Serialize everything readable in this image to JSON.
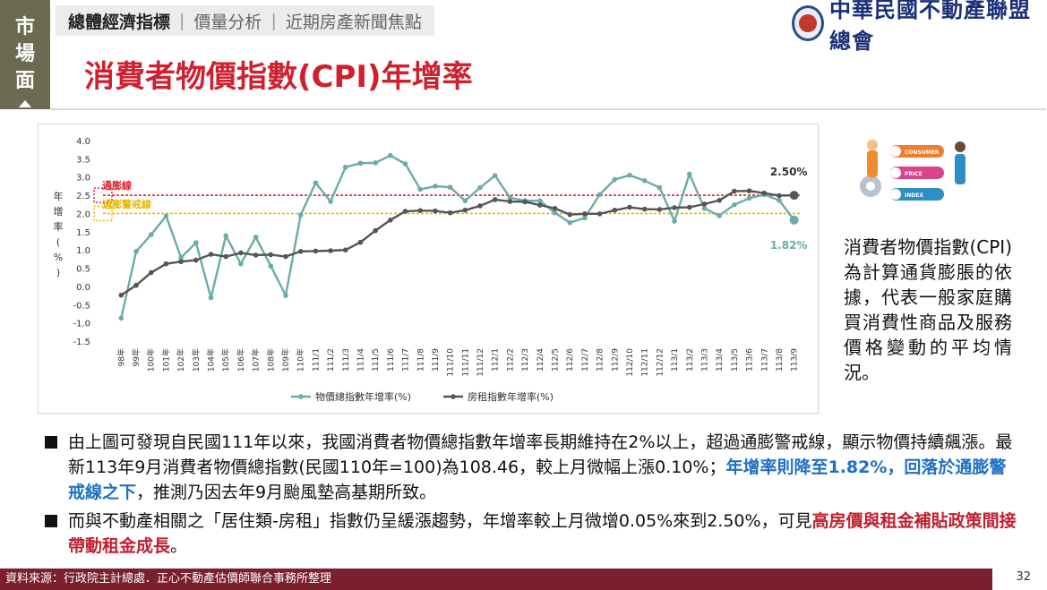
{
  "side_tab": {
    "chars": [
      "市",
      "場",
      "面"
    ]
  },
  "nav": {
    "tabs": [
      "總體經濟指標",
      "價量分析",
      "近期房產新聞焦點"
    ]
  },
  "logo": {
    "text": "中華民國不動產聯盟總會"
  },
  "page": {
    "title": "消費者物價指數(CPI)年增率",
    "number": "32"
  },
  "chart_data": {
    "type": "line",
    "x": [
      "98年",
      "99年",
      "100年",
      "101年",
      "102年",
      "103年",
      "104年",
      "105年",
      "106年",
      "107年",
      "108年",
      "109年",
      "110年",
      "111/1",
      "111/2",
      "111/3",
      "111/4",
      "111/5",
      "111/6",
      "111/7",
      "111/8",
      "111/9",
      "111/10",
      "111/11",
      "111/12",
      "112/1",
      "112/2",
      "112/3",
      "112/4",
      "112/5",
      "112/6",
      "112/7",
      "112/8",
      "112/9",
      "112/10",
      "112/11",
      "112/12",
      "113/1",
      "113/2",
      "113/3",
      "113/4",
      "113/5",
      "113/6",
      "113/7",
      "113/8",
      "113/9"
    ],
    "series": [
      {
        "name": "物價總指數年增率(%)",
        "color": "#6aaca8",
        "values": [
          -0.87,
          0.96,
          1.42,
          1.93,
          0.79,
          1.2,
          -0.31,
          1.39,
          0.62,
          1.35,
          0.56,
          -0.25,
          1.96,
          2.84,
          2.33,
          3.27,
          3.38,
          3.39,
          3.59,
          3.36,
          2.66,
          2.75,
          2.72,
          2.35,
          2.71,
          3.04,
          2.43,
          2.35,
          2.35,
          2.02,
          1.75,
          1.88,
          2.52,
          2.93,
          3.05,
          2.9,
          2.71,
          1.79,
          3.08,
          2.14,
          1.94,
          2.24,
          2.42,
          2.52,
          2.36,
          1.82
        ]
      },
      {
        "name": "房租指數年增率(%)",
        "color": "#555555",
        "values": [
          -0.24,
          0.03,
          0.38,
          0.62,
          0.68,
          0.72,
          0.88,
          0.82,
          0.92,
          0.86,
          0.87,
          0.82,
          0.96,
          0.97,
          0.98,
          1.0,
          1.21,
          1.53,
          1.82,
          2.06,
          2.08,
          2.07,
          2.02,
          2.09,
          2.21,
          2.38,
          2.33,
          2.32,
          2.23,
          2.14,
          1.97,
          1.99,
          1.99,
          2.09,
          2.17,
          2.12,
          2.11,
          2.16,
          2.17,
          2.26,
          2.36,
          2.61,
          2.62,
          2.56,
          2.49,
          2.5
        ]
      }
    ],
    "ylim": [
      -1.5,
      4.0
    ],
    "yticks": [
      "4.0",
      "3.5",
      "3.0",
      "2.5",
      "2.0",
      "1.5",
      "1.0",
      "0.5",
      "0.0",
      "-0.5",
      "-1.0",
      "-1.5"
    ],
    "ylabel_chars": [
      "年",
      "增",
      "率",
      "(",
      "%",
      ")"
    ],
    "ref_lines": [
      {
        "label": "通膨線",
        "value": 2.5,
        "color": "#e0202e"
      },
      {
        "label": "通膨警戒線",
        "value": 2.0,
        "color": "#e6b800"
      }
    ],
    "annotations": [
      {
        "text": "2.50%",
        "color": "#333333"
      },
      {
        "text": "1.82%",
        "color": "#6aaca8"
      }
    ],
    "legend": "bottom"
  },
  "illustration": {
    "labels": [
      "CONSUMER",
      "PRICE",
      "INDEX"
    ]
  },
  "side_text": "消費者物價指數(CPI)為計算通貨膨脹的依據，代表一般家庭購買消費性商品及服務價格變動的平均情況。",
  "bullets": [
    {
      "text": "由上圖可發現自民國111年以來，我國消費者物價總指數年增率長期維持在2%以上，超過通膨警戒線，顯示物價持續飆漲。最新113年9月消費者物價總指數(民國110年=100)為108.46，較上月微幅上漲0.10%；",
      "highlight": "年增率則降至1.82%，回落於通膨警戒線之下",
      "tail": "，推測乃因去年9月颱風墊高基期所致。"
    },
    {
      "text": "而與不動產相關之「居住類-房租」指數仍呈緩漲趨勢，年增率較上月微增0.05%來到2.50%，可見",
      "highlight": "高房價與租金補貼政策間接帶動租金成長",
      "tail": "。"
    }
  ],
  "footer": {
    "source": "資料來源：行政院主計總處．正心不動產估價師聯合事務所整理"
  }
}
